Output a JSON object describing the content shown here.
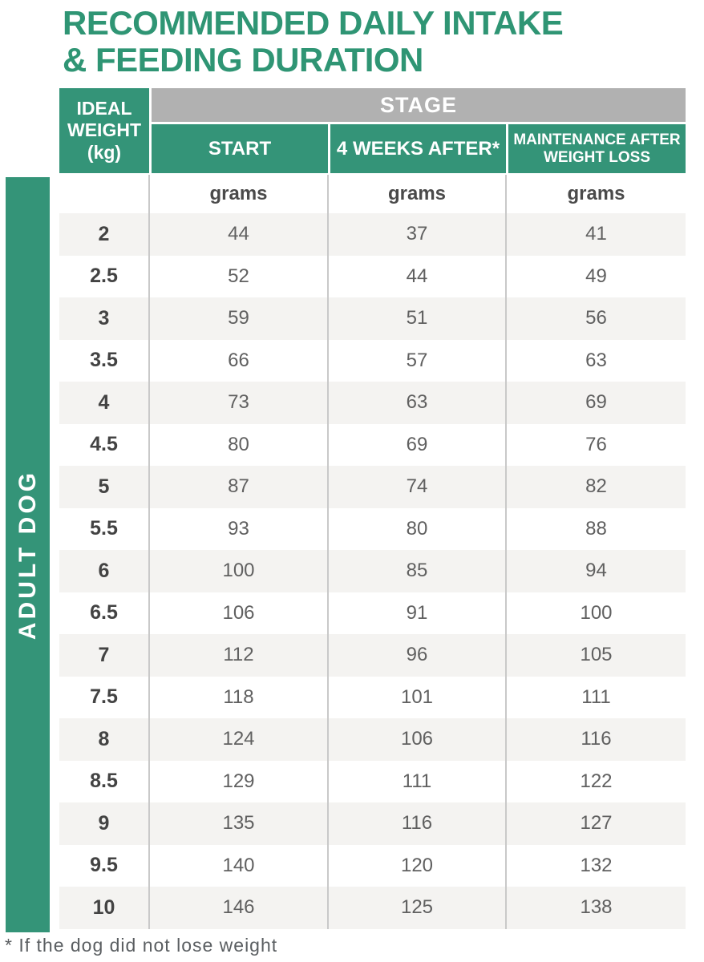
{
  "title": {
    "lines": [
      "RECOMMENDED DAILY INTAKE",
      "& FEEDING DURATION"
    ]
  },
  "side_label": "ADULT DOG",
  "table": {
    "corner_header": "IDEAL WEIGHT (kg)",
    "stage_header": "STAGE",
    "columns": [
      "START",
      "4 WEEKS AFTER*",
      "MAINTENANCE AFTER WEIGHT LOSS"
    ],
    "units": [
      "grams",
      "grams",
      "grams"
    ],
    "rows": [
      {
        "weight": "2",
        "values": [
          "44",
          "37",
          "41"
        ]
      },
      {
        "weight": "2.5",
        "values": [
          "52",
          "44",
          "49"
        ]
      },
      {
        "weight": "3",
        "values": [
          "59",
          "51",
          "56"
        ]
      },
      {
        "weight": "3.5",
        "values": [
          "66",
          "57",
          "63"
        ]
      },
      {
        "weight": "4",
        "values": [
          "73",
          "63",
          "69"
        ]
      },
      {
        "weight": "4.5",
        "values": [
          "80",
          "69",
          "76"
        ]
      },
      {
        "weight": "5",
        "values": [
          "87",
          "74",
          "82"
        ]
      },
      {
        "weight": "5.5",
        "values": [
          "93",
          "80",
          "88"
        ]
      },
      {
        "weight": "6",
        "values": [
          "100",
          "85",
          "94"
        ]
      },
      {
        "weight": "6.5",
        "values": [
          "106",
          "91",
          "100"
        ]
      },
      {
        "weight": "7",
        "values": [
          "112",
          "96",
          "105"
        ]
      },
      {
        "weight": "7.5",
        "values": [
          "118",
          "101",
          "111"
        ]
      },
      {
        "weight": "8",
        "values": [
          "124",
          "106",
          "116"
        ]
      },
      {
        "weight": "8.5",
        "values": [
          "129",
          "111",
          "122"
        ]
      },
      {
        "weight": "9",
        "values": [
          "135",
          "116",
          "127"
        ]
      },
      {
        "weight": "9.5",
        "values": [
          "140",
          "120",
          "132"
        ]
      },
      {
        "weight": "10",
        "values": [
          "146",
          "125",
          "138"
        ]
      }
    ]
  },
  "footnote": "* If the dog did not lose weight",
  "colors": {
    "brand_green": "#349478",
    "title_green": "#2f9574",
    "header_gray": "#b1b1b1",
    "row_stripe": "#f4f3f1",
    "grid_line": "#c9c9c9",
    "value_text": "#606060",
    "dark_text": "#434343"
  }
}
